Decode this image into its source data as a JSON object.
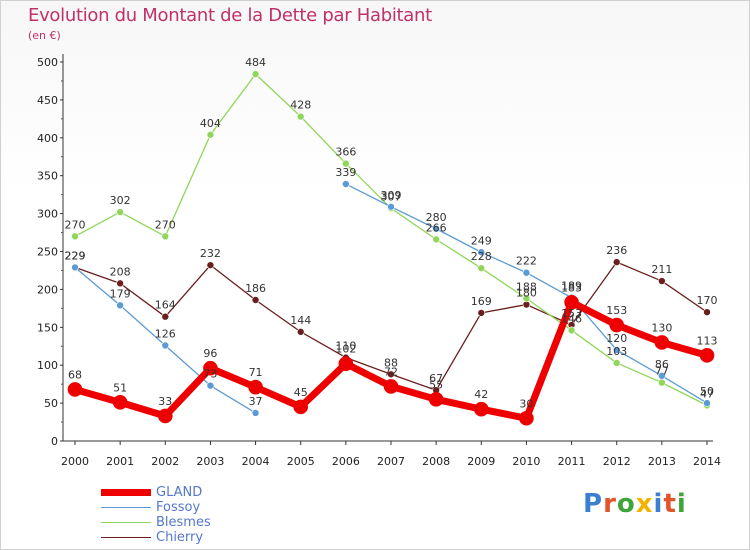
{
  "chart_data": {
    "type": "line",
    "title": "Evolution du Montant de la Dette par Habitant",
    "subtitle": "(en €)",
    "ylim": [
      0,
      500
    ],
    "yticks": [
      0,
      50,
      100,
      150,
      200,
      250,
      300,
      350,
      400,
      450,
      500
    ],
    "grid": false,
    "legend_position": "bottom-left",
    "x": [
      "2000",
      "2001",
      "2002",
      "2003",
      "2004",
      "2005",
      "2006",
      "2007",
      "2008",
      "2009",
      "2010",
      "2011",
      "2012",
      "2013",
      "2014"
    ],
    "series": [
      {
        "name": "Chierry",
        "color": "#6b1e1e",
        "width": 1.3,
        "marker": 3.5,
        "values": [
          229,
          208,
          164,
          232,
          186,
          144,
          110,
          88,
          67,
          169,
          180,
          153,
          236,
          211,
          170
        ]
      },
      {
        "name": "Blesmes",
        "color": "#8fd65a",
        "width": 1.3,
        "marker": 3.5,
        "values": [
          270,
          302,
          270,
          404,
          484,
          428,
          366,
          307,
          266,
          228,
          188,
          146,
          103,
          77,
          47
        ]
      },
      {
        "name": "Fossoy",
        "color": "#5b9bd5",
        "width": 1.3,
        "marker": 3.5,
        "values": [
          229,
          179,
          126,
          73,
          37,
          null,
          339,
          309,
          280,
          249,
          222,
          189,
          120,
          86,
          50
        ]
      },
      {
        "name": "GLAND",
        "color": "#ee0000",
        "width": 7,
        "marker": 7,
        "values": [
          68,
          51,
          33,
          96,
          71,
          45,
          102,
          72,
          55,
          42,
          30,
          183,
          153,
          130,
          113
        ]
      }
    ]
  },
  "legend": {
    "items": [
      {
        "name": "GLAND",
        "color": "#ee0000",
        "thickness": 7
      },
      {
        "name": "Fossoy",
        "color": "#5b9bd5",
        "thickness": 1
      },
      {
        "name": "Blesmes",
        "color": "#8fd65a",
        "thickness": 1
      },
      {
        "name": "Chierry",
        "color": "#6b1e1e",
        "thickness": 1
      }
    ]
  },
  "logo": {
    "letters": [
      "P",
      "r",
      "o",
      "x",
      "i",
      "t",
      "i"
    ],
    "colors": [
      "#3a7fd0",
      "#e2542a",
      "#3fa53b",
      "#f1b300",
      "#3a7fd0",
      "#e2542a",
      "#3fa53b"
    ]
  }
}
